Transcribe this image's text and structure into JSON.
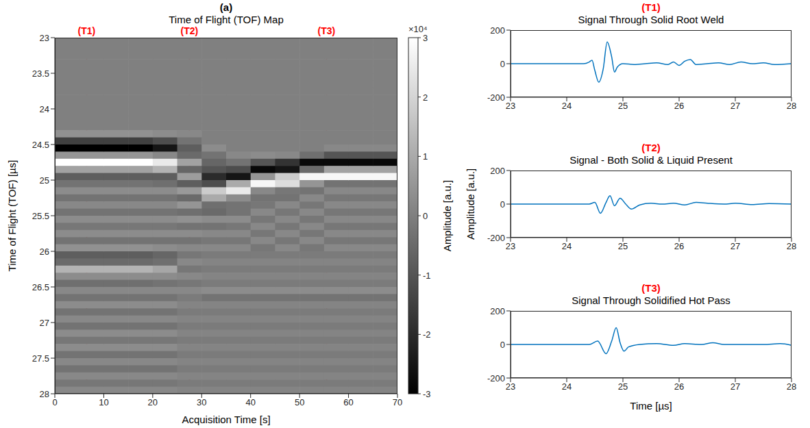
{
  "chart_data": [
    {
      "type": "heatmap",
      "panel_label": "(a)",
      "title": "Time of Flight (TOF) Map",
      "x_label": "Acquisition Time [s]",
      "y_label": "Time of Flight (TOF) [µs]",
      "x": [
        2.5,
        7.5,
        12.5,
        17.5,
        22.5,
        27.5,
        32.5,
        37.5,
        42.5,
        47.5,
        52.5,
        57.5,
        62.5,
        67.5
      ],
      "y": [
        23.05,
        23.15,
        23.25,
        23.35,
        23.45,
        23.55,
        23.65,
        23.75,
        23.85,
        23.95,
        24.05,
        24.15,
        24.25,
        24.35,
        24.45,
        24.55,
        24.65,
        24.75,
        24.85,
        24.95,
        25.05,
        25.15,
        25.25,
        25.35,
        25.45,
        25.55,
        25.65,
        25.75,
        25.85,
        25.95,
        26.05,
        26.15,
        26.25,
        26.35,
        26.45,
        26.55,
        26.65,
        26.75,
        26.85,
        26.95,
        27.05,
        27.15,
        27.25,
        27.35,
        27.45,
        27.55,
        27.65,
        27.75,
        27.85,
        27.95
      ],
      "cells": [
        [
          0,
          0,
          0,
          0,
          0,
          0,
          0,
          0,
          0,
          0,
          0,
          0,
          0,
          0.4,
          -1.5,
          -3,
          0.5,
          3,
          0.8,
          -0.8,
          -0.3,
          0.3,
          -0.3,
          0.2,
          -0.3,
          0.3,
          -0.2,
          0.3,
          -0.3,
          0.4,
          -0.8,
          -0.5,
          1.2,
          0.3,
          -0.4,
          0.2,
          -0.3,
          0.3,
          -0.3,
          0.2,
          -0.3,
          0.3,
          -0.2,
          0.3,
          -0.3,
          0.2,
          -0.3,
          0.2,
          -0.2,
          0.2
        ],
        [
          0,
          0,
          0,
          0,
          0,
          0,
          0,
          0,
          0,
          0,
          0,
          0,
          0,
          0.4,
          -1.5,
          -3,
          0.5,
          3,
          0.8,
          -0.8,
          -0.3,
          0.3,
          -0.3,
          0.2,
          -0.3,
          0.3,
          -0.2,
          0.3,
          -0.3,
          0.4,
          -0.8,
          -0.5,
          1.2,
          0.3,
          -0.4,
          0.2,
          -0.3,
          0.3,
          -0.3,
          0.2,
          -0.3,
          0.3,
          -0.2,
          0.3,
          -0.3,
          0.2,
          -0.3,
          0.2,
          -0.2,
          0.2
        ],
        [
          0,
          0,
          0,
          0,
          0,
          0,
          0,
          0,
          0,
          0,
          0,
          0,
          0,
          0.4,
          -1.5,
          -3,
          0.5,
          3,
          0.8,
          -0.8,
          -0.3,
          0.3,
          -0.3,
          0.2,
          -0.3,
          0.3,
          -0.2,
          0.3,
          -0.3,
          0.4,
          -0.8,
          -0.5,
          1.2,
          0.3,
          -0.4,
          0.2,
          -0.3,
          0.3,
          -0.3,
          0.2,
          -0.3,
          0.3,
          -0.2,
          0.3,
          -0.3,
          0.2,
          -0.3,
          0.2,
          -0.2,
          0.2
        ],
        [
          0,
          0,
          0,
          0,
          0,
          0,
          0,
          0,
          0,
          0,
          0,
          0,
          0,
          0.4,
          -1.5,
          -3,
          0.5,
          3,
          0.8,
          -0.8,
          -0.3,
          0.3,
          -0.3,
          0.2,
          -0.3,
          0.3,
          -0.2,
          0.3,
          -0.3,
          0.4,
          -0.8,
          -0.5,
          1.2,
          0.3,
          -0.4,
          0.2,
          -0.3,
          0.3,
          -0.3,
          0.2,
          -0.3,
          0.3,
          -0.2,
          0.3,
          -0.3,
          0.2,
          -0.3,
          0.2,
          -0.2,
          0.2
        ],
        [
          0,
          0,
          0,
          0,
          0,
          0,
          0,
          0,
          0,
          0,
          0,
          0,
          0,
          0.3,
          -1.2,
          -2.5,
          0.2,
          2.5,
          1.2,
          -0.8,
          -0.4,
          0.3,
          -0.3,
          0.2,
          -0.3,
          0.3,
          -0.2,
          0.3,
          -0.3,
          0.3,
          -0.6,
          -0.4,
          0.9,
          0.3,
          -0.3,
          0.2,
          -0.3,
          0.3,
          -0.3,
          0.2,
          -0.3,
          0.3,
          -0.2,
          0.3,
          -0.3,
          0.2,
          -0.3,
          0.2,
          -0.2,
          0.2
        ],
        [
          0,
          0,
          0,
          0,
          0,
          0,
          0,
          0,
          0,
          0,
          0,
          0,
          0,
          0.2,
          -0.3,
          -0.8,
          -0.5,
          0.8,
          -0.6,
          0.7,
          -0.8,
          0.6,
          -0.5,
          0.5,
          -0.4,
          0.4,
          -0.3,
          0.3,
          -0.3,
          0.2,
          -0.2,
          0.2,
          -0.2,
          0.2,
          -0.2,
          0.2,
          -0.1,
          0.1,
          -0.1,
          0.1,
          -0.1,
          0.1,
          -0.1,
          0.1,
          -0.1,
          0.1,
          -0.1,
          0.1,
          -0.1,
          0.1
        ],
        [
          0,
          0,
          0,
          0,
          0,
          0,
          0,
          0,
          0,
          0,
          0,
          0,
          0,
          0,
          0,
          0.3,
          -0.3,
          -0.6,
          -1,
          -2,
          -1.2,
          1.8,
          1,
          -0.4,
          -0.5,
          0.3,
          -0.3,
          0.2,
          -0.2,
          0.2,
          -0.1,
          0.1,
          -0.1,
          0.1,
          -0.1,
          0.3,
          -0.3,
          0.1,
          -0.1,
          0.1,
          -0.1,
          0.1,
          -0.1,
          0.1,
          -0.1,
          0.1,
          -0.1,
          0.1,
          -0.1,
          0.1
        ],
        [
          0,
          0,
          0,
          0,
          0,
          0,
          0,
          0,
          0,
          0,
          0,
          0,
          0,
          0,
          0,
          0,
          0.2,
          -0.3,
          -1.2,
          -2.5,
          1,
          2.5,
          0.3,
          -0.3,
          -0.3,
          0.3,
          -0.2,
          0.2,
          -0.2,
          0.2,
          -0.1,
          0.1,
          -0.1,
          0.1,
          -0.1,
          0.3,
          -0.3,
          0.1,
          -0.1,
          0.1,
          -0.1,
          0.1,
          -0.1,
          0.1,
          -0.1,
          0.1,
          -0.1,
          0.1,
          -0.1,
          0.1
        ],
        [
          0,
          0,
          0,
          0,
          0,
          0,
          0,
          0,
          0,
          0,
          0,
          0,
          0,
          0,
          0,
          0,
          0.3,
          -1,
          -2.8,
          0.5,
          2.8,
          0.2,
          -0.3,
          -0.2,
          0.2,
          -0.2,
          0.2,
          -0.2,
          0.2,
          -0.2,
          -0.1,
          0.1,
          -0.1,
          0.1,
          -0.1,
          0.3,
          -0.3,
          0.1,
          -0.1,
          0.1,
          -0.1,
          0.1,
          -0.1,
          0.1,
          -0.1,
          0.1,
          -0.1,
          0.1,
          -0.1,
          0.1
        ],
        [
          0,
          0,
          0,
          0,
          0,
          0,
          0,
          0,
          0,
          0,
          0,
          0,
          0,
          0,
          0,
          0,
          0.2,
          -1.8,
          -2.5,
          1.8,
          2.2,
          -0.2,
          -0.3,
          0.2,
          -0.2,
          0.2,
          -0.2,
          0.2,
          -0.2,
          0.2,
          -0.1,
          0.1,
          -0.1,
          0.1,
          -0.1,
          0.3,
          -0.3,
          0.1,
          -0.1,
          0.1,
          -0.1,
          0.1,
          -0.1,
          0.1,
          -0.1,
          0.1,
          -0.1,
          0.1,
          -0.1,
          0.1
        ],
        [
          0,
          0,
          0,
          0,
          0,
          0,
          0,
          0,
          0,
          0,
          0,
          0,
          0,
          0,
          0,
          0,
          -0.4,
          -2.8,
          -0.5,
          2.8,
          0.5,
          -0.3,
          0.2,
          -0.2,
          0.2,
          -0.2,
          0.2,
          -0.2,
          0.2,
          -0.2,
          -0.1,
          0.1,
          -0.1,
          0.1,
          -0.1,
          0.3,
          -0.3,
          0.1,
          -0.1,
          0.1,
          -0.1,
          0.1,
          -0.1,
          0.1,
          -0.1,
          0.1,
          -0.1,
          0.1,
          -0.1,
          0.1
        ],
        [
          0,
          0,
          0,
          0,
          0,
          0,
          0,
          0,
          0,
          0,
          0,
          0,
          0,
          0,
          0,
          0.2,
          -1,
          -2.8,
          0.8,
          2.8,
          -0.3,
          0.2,
          -0.2,
          0.2,
          -0.2,
          0.2,
          -0.2,
          0.2,
          -0.2,
          0.2,
          -0.1,
          0.1,
          -0.1,
          0.1,
          -0.1,
          0.3,
          -0.3,
          0.1,
          -0.1,
          0.1,
          -0.1,
          0.1,
          -0.1,
          0.1,
          -0.1,
          0.1,
          -0.1,
          0.1,
          -0.1,
          0.1
        ],
        [
          0,
          0,
          0,
          0,
          0,
          0,
          0,
          0,
          0,
          0,
          0,
          0,
          0,
          0,
          0,
          0.2,
          -1,
          -2.8,
          0.8,
          2.8,
          -0.3,
          0.2,
          -0.2,
          0.2,
          -0.2,
          0.2,
          -0.2,
          0.2,
          -0.2,
          0.2,
          -0.1,
          0.1,
          -0.1,
          0.1,
          -0.1,
          0.3,
          -0.3,
          0.1,
          -0.1,
          0.1,
          -0.1,
          0.1,
          -0.1,
          0.1,
          -0.1,
          0.1,
          -0.1,
          0.1,
          -0.1,
          0.1
        ],
        [
          0,
          0,
          0,
          0,
          0,
          0,
          0,
          0,
          0,
          0,
          0,
          0,
          0,
          0,
          0,
          0.2,
          -1,
          -2.8,
          0.8,
          2.8,
          -0.3,
          0.2,
          -0.2,
          0.2,
          -0.2,
          0.2,
          -0.2,
          0.2,
          -0.2,
          0.2,
          -0.1,
          0.1,
          -0.1,
          0.1,
          -0.1,
          0.3,
          -0.3,
          0.1,
          -0.1,
          0.1,
          -0.1,
          0.1,
          -0.1,
          0.1,
          -0.1,
          0.1,
          -0.1,
          0.1,
          -0.1,
          0.1
        ]
      ],
      "xlim": [
        0,
        70
      ],
      "ylim": [
        23,
        28
      ],
      "xticks": [
        0,
        10,
        20,
        30,
        40,
        50,
        60,
        70
      ],
      "yticks": [
        23,
        23.5,
        24,
        24.5,
        25,
        25.5,
        26,
        26.5,
        27,
        27.5,
        28
      ],
      "colorbar": {
        "label": "Amplitude [a.u.]",
        "scale_label": "×10⁴",
        "range": [
          -3,
          3
        ],
        "ticks": [
          -3,
          -2,
          -1,
          0,
          1,
          2,
          3
        ]
      },
      "markers": [
        {
          "label": "(T1)",
          "x": 6.5,
          "color": "#ff0000"
        },
        {
          "label": "(T2)",
          "x": 27.5,
          "color": "#ff0000"
        },
        {
          "label": "(T3)",
          "x": 55.5,
          "color": "#ff0000"
        }
      ]
    },
    {
      "type": "line",
      "panel_label": "(T1)",
      "title": "Signal Through Solid Root Weld",
      "color": "#0072bd",
      "x": [
        23,
        23.5,
        24,
        24.3,
        24.4,
        24.45,
        24.5,
        24.57,
        24.65,
        24.72,
        24.8,
        24.85,
        24.9,
        25,
        25.2,
        25.4,
        25.6,
        25.8,
        25.9,
        26,
        26.1,
        26.2,
        26.3,
        26.5,
        26.7,
        26.9,
        27.1,
        27.3,
        27.5,
        27.7,
        28
      ],
      "values": [
        0,
        0,
        0,
        0,
        10,
        20,
        -40,
        -110,
        -30,
        130,
        40,
        -50,
        -20,
        0,
        -5,
        0,
        5,
        -5,
        10,
        -10,
        15,
        25,
        -5,
        0,
        5,
        -5,
        10,
        0,
        5,
        -5,
        0
      ],
      "xlim": [
        23,
        28
      ],
      "ylim": [
        -200,
        200
      ],
      "xticks": [
        23,
        24,
        25,
        26,
        27,
        28
      ],
      "yticks": [
        -200,
        0,
        200
      ]
    },
    {
      "type": "line",
      "panel_label": "(T2)",
      "title": "Signal - Both Solid & Liquid Present",
      "y_label": "Amplitude [a.u.]",
      "color": "#0072bd",
      "x": [
        23,
        23.5,
        24,
        24.4,
        24.5,
        24.6,
        24.7,
        24.77,
        24.85,
        24.95,
        25.05,
        25.15,
        25.3,
        25.5,
        25.7,
        25.9,
        26.1,
        26.3,
        26.5,
        26.8,
        27,
        27.3,
        27.6,
        28
      ],
      "values": [
        0,
        0,
        0,
        0,
        10,
        -55,
        10,
        50,
        -10,
        35,
        0,
        -30,
        -5,
        5,
        0,
        5,
        -5,
        10,
        5,
        0,
        5,
        -3,
        3,
        0
      ],
      "xlim": [
        23,
        28
      ],
      "ylim": [
        -200,
        200
      ],
      "xticks": [
        23,
        24,
        25,
        26,
        27,
        28
      ],
      "yticks": [
        -200,
        0,
        200
      ]
    },
    {
      "type": "line",
      "panel_label": "(T3)",
      "title": "Signal Through Solidified Hot Pass",
      "x_label": "Time [µs]",
      "color": "#0072bd",
      "x": [
        23,
        23.5,
        24,
        24.4,
        24.55,
        24.7,
        24.8,
        24.88,
        24.95,
        25.02,
        25.1,
        25.3,
        25.6,
        25.9,
        26.1,
        26.4,
        26.6,
        26.8,
        27,
        27.5,
        27.8,
        28
      ],
      "values": [
        0,
        0,
        0,
        0,
        20,
        -55,
        20,
        100,
        10,
        -40,
        -15,
        0,
        5,
        -5,
        5,
        0,
        10,
        0,
        0,
        0,
        5,
        -5
      ],
      "xlim": [
        23,
        28
      ],
      "ylim": [
        -200,
        200
      ],
      "xticks": [
        23,
        24,
        25,
        26,
        27,
        28
      ],
      "yticks": [
        -200,
        0,
        200
      ]
    }
  ]
}
